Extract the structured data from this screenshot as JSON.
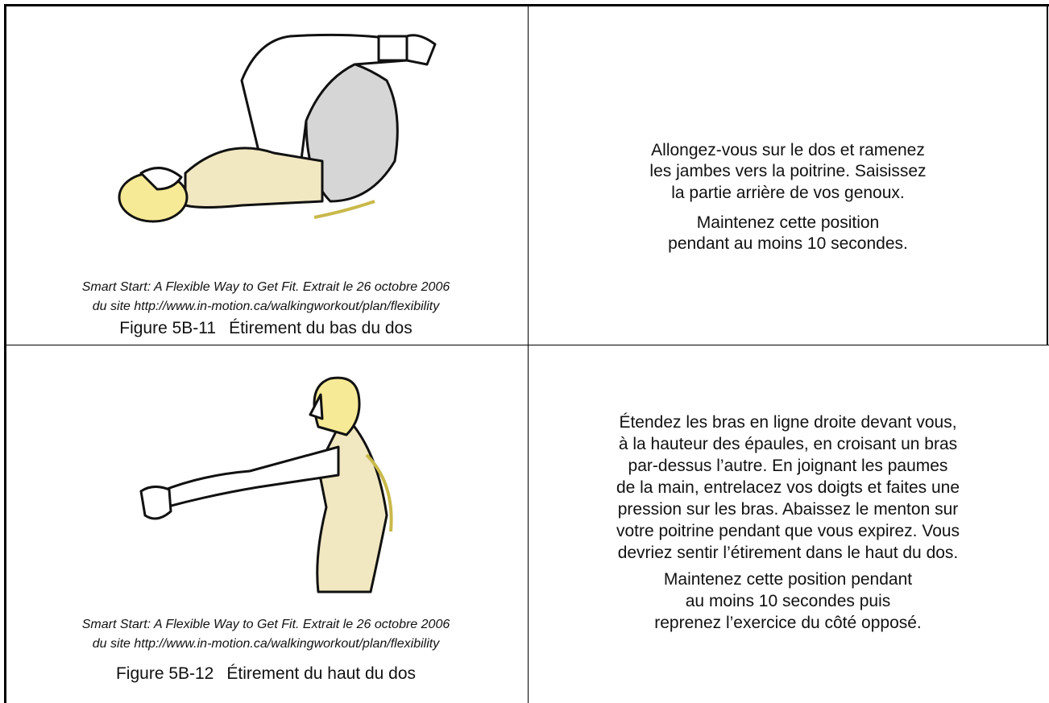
{
  "rows": [
    {
      "caption": [
        "Smart Start: A Flexible Way to Get Fit. Extrait le 26 octobre 2006",
        "du site http://www.in-motion.ca/walkingworkout/plan/flexibility"
      ],
      "figure_label": "Figure 5B-11",
      "figure_title": "Étirement du bas du dos",
      "instructions": [
        [
          "Allongez-vous sur le dos et ramenez",
          "les jambes vers la poitrine. Saisissez",
          "la partie arrière de vos genoux."
        ],
        [
          "Maintenez cette position",
          "pendant au moins 10 secondes."
        ]
      ]
    },
    {
      "caption": [
        "Smart Start: A Flexible Way to Get Fit. Extrait le 26 octobre 2006",
        "du site http://www.in-motion.ca/walkingworkout/plan/flexibility"
      ],
      "figure_label": "Figure 5B-12",
      "figure_title": "Étirement du haut du dos",
      "instructions": [
        [
          "Étendez les bras en ligne droite devant vous,",
          "à la hauteur des épaules, en croisant un bras",
          "par-dessus l’autre. En joignant les paumes",
          "de la main, entrelacez vos doigts et faites une",
          "pression sur les bras. Abaissez le menton sur",
          "votre poitrine pendant que vous expirez. Vous",
          "devriez sentir l’étirement dans le haut du dos."
        ],
        [
          "Maintenez cette position pendant",
          "au moins 10 secondes puis",
          "reprenez l’exercice du côté opposé."
        ]
      ]
    }
  ]
}
